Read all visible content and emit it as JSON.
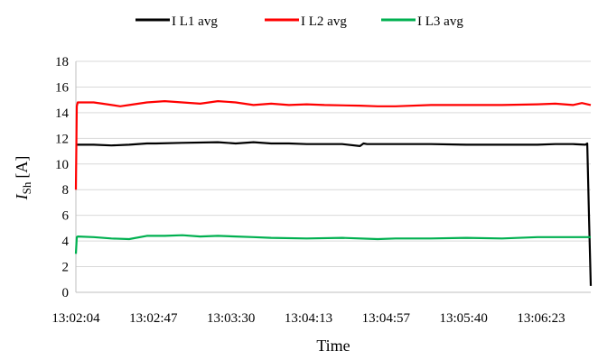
{
  "chart_data": {
    "type": "line",
    "title": "",
    "xlabel": "Time",
    "ylabel_main": "I",
    "ylabel_sub": "Sh",
    "ylabel_unit": "[A]",
    "ylim": [
      0,
      18
    ],
    "ytick_step": 2,
    "yticks": [
      "0",
      "2",
      "4",
      "6",
      "8",
      "10",
      "12",
      "14",
      "16",
      "18"
    ],
    "xlim_seconds": [
      0,
      290
    ],
    "xtick_labels": [
      "13:02:04",
      "13:02:47",
      "13:03:30",
      "13:04:13",
      "13:04:57",
      "13:05:40",
      "13:06:23"
    ],
    "x_start": "13:02:04",
    "x_end": "13:06:54",
    "grid": "horizontal",
    "legend_position": "top",
    "series": [
      {
        "name": "I L1 avg",
        "color": "#000000",
        "x_seconds": [
          0,
          1,
          10,
          20,
          30,
          40,
          45,
          60,
          80,
          90,
          100,
          110,
          120,
          130,
          150,
          160,
          162,
          164,
          180,
          200,
          220,
          240,
          260,
          270,
          280,
          287,
          288,
          289,
          290
        ],
        "values": [
          11.5,
          11.5,
          11.5,
          11.45,
          11.5,
          11.6,
          11.6,
          11.65,
          11.7,
          11.6,
          11.7,
          11.6,
          11.6,
          11.55,
          11.55,
          11.4,
          11.6,
          11.55,
          11.55,
          11.55,
          11.5,
          11.5,
          11.5,
          11.55,
          11.55,
          11.5,
          11.6,
          6.0,
          0.5
        ]
      },
      {
        "name": "I L2 avg",
        "color": "#ff0000",
        "x_seconds": [
          0,
          0.5,
          1,
          10,
          15,
          25,
          30,
          40,
          50,
          60,
          70,
          80,
          90,
          100,
          110,
          120,
          130,
          140,
          160,
          170,
          180,
          200,
          220,
          240,
          260,
          270,
          280,
          285,
          290
        ],
        "values": [
          8.0,
          14.5,
          14.8,
          14.8,
          14.7,
          14.5,
          14.6,
          14.8,
          14.9,
          14.8,
          14.7,
          14.9,
          14.8,
          14.6,
          14.7,
          14.6,
          14.65,
          14.6,
          14.55,
          14.5,
          14.5,
          14.6,
          14.6,
          14.6,
          14.65,
          14.7,
          14.6,
          14.75,
          14.6
        ]
      },
      {
        "name": "I L3 avg",
        "color": "#00b050",
        "x_seconds": [
          0,
          0.5,
          1,
          10,
          20,
          30,
          40,
          50,
          60,
          70,
          80,
          90,
          100,
          110,
          130,
          150,
          170,
          180,
          200,
          220,
          240,
          260,
          270,
          280,
          290
        ],
        "values": [
          3.0,
          4.3,
          4.35,
          4.3,
          4.2,
          4.15,
          4.4,
          4.4,
          4.45,
          4.35,
          4.4,
          4.35,
          4.3,
          4.25,
          4.2,
          4.25,
          4.15,
          4.2,
          4.2,
          4.25,
          4.2,
          4.3,
          4.3,
          4.3,
          4.3
        ]
      }
    ]
  }
}
